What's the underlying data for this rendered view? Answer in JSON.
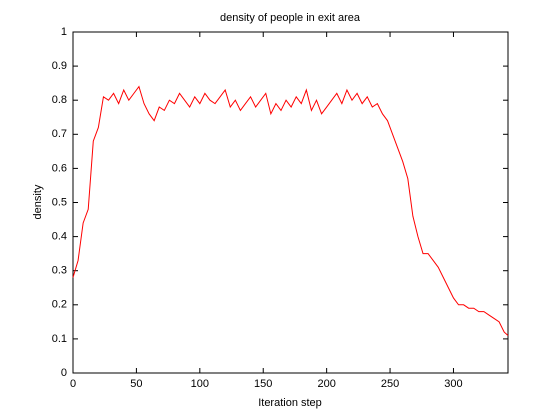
{
  "chart_data": {
    "type": "line",
    "title": "density of people in exit area",
    "x_label": "Iteration step",
    "y_label": "density",
    "x": [
      0,
      4,
      8,
      12,
      16,
      20,
      24,
      28,
      32,
      36,
      40,
      44,
      48,
      52,
      56,
      60,
      64,
      68,
      72,
      76,
      80,
      84,
      88,
      92,
      96,
      100,
      104,
      108,
      112,
      116,
      120,
      124,
      128,
      132,
      136,
      140,
      144,
      148,
      152,
      156,
      160,
      164,
      168,
      172,
      176,
      180,
      184,
      188,
      192,
      196,
      200,
      204,
      208,
      212,
      216,
      220,
      224,
      228,
      232,
      236,
      240,
      244,
      248,
      252,
      256,
      260,
      264,
      268,
      272,
      276,
      280,
      284,
      288,
      292,
      296,
      300,
      304,
      308,
      312,
      316,
      320,
      324,
      328,
      332,
      336,
      340,
      343
    ],
    "series": [
      {
        "name": "density",
        "color": "#ff0000",
        "values": [
          0.28,
          0.33,
          0.44,
          0.48,
          0.68,
          0.72,
          0.81,
          0.8,
          0.82,
          0.79,
          0.83,
          0.8,
          0.82,
          0.84,
          0.79,
          0.76,
          0.74,
          0.78,
          0.77,
          0.8,
          0.79,
          0.82,
          0.8,
          0.78,
          0.81,
          0.79,
          0.82,
          0.8,
          0.79,
          0.81,
          0.83,
          0.78,
          0.8,
          0.77,
          0.79,
          0.81,
          0.78,
          0.8,
          0.82,
          0.76,
          0.79,
          0.77,
          0.8,
          0.78,
          0.81,
          0.79,
          0.83,
          0.77,
          0.8,
          0.76,
          0.78,
          0.8,
          0.82,
          0.79,
          0.83,
          0.8,
          0.82,
          0.79,
          0.81,
          0.78,
          0.79,
          0.76,
          0.74,
          0.7,
          0.66,
          0.62,
          0.57,
          0.46,
          0.4,
          0.35,
          0.35,
          0.33,
          0.31,
          0.28,
          0.25,
          0.22,
          0.2,
          0.2,
          0.19,
          0.19,
          0.18,
          0.18,
          0.17,
          0.16,
          0.15,
          0.12,
          0.11
        ]
      }
    ],
    "xlim": [
      0,
      343
    ],
    "ylim": [
      0,
      1
    ],
    "xticks": [
      0,
      50,
      100,
      150,
      200,
      250,
      300
    ],
    "yticks": [
      0,
      0.1,
      0.2,
      0.3,
      0.4,
      0.5,
      0.6,
      0.7,
      0.8,
      0.9,
      1
    ]
  }
}
